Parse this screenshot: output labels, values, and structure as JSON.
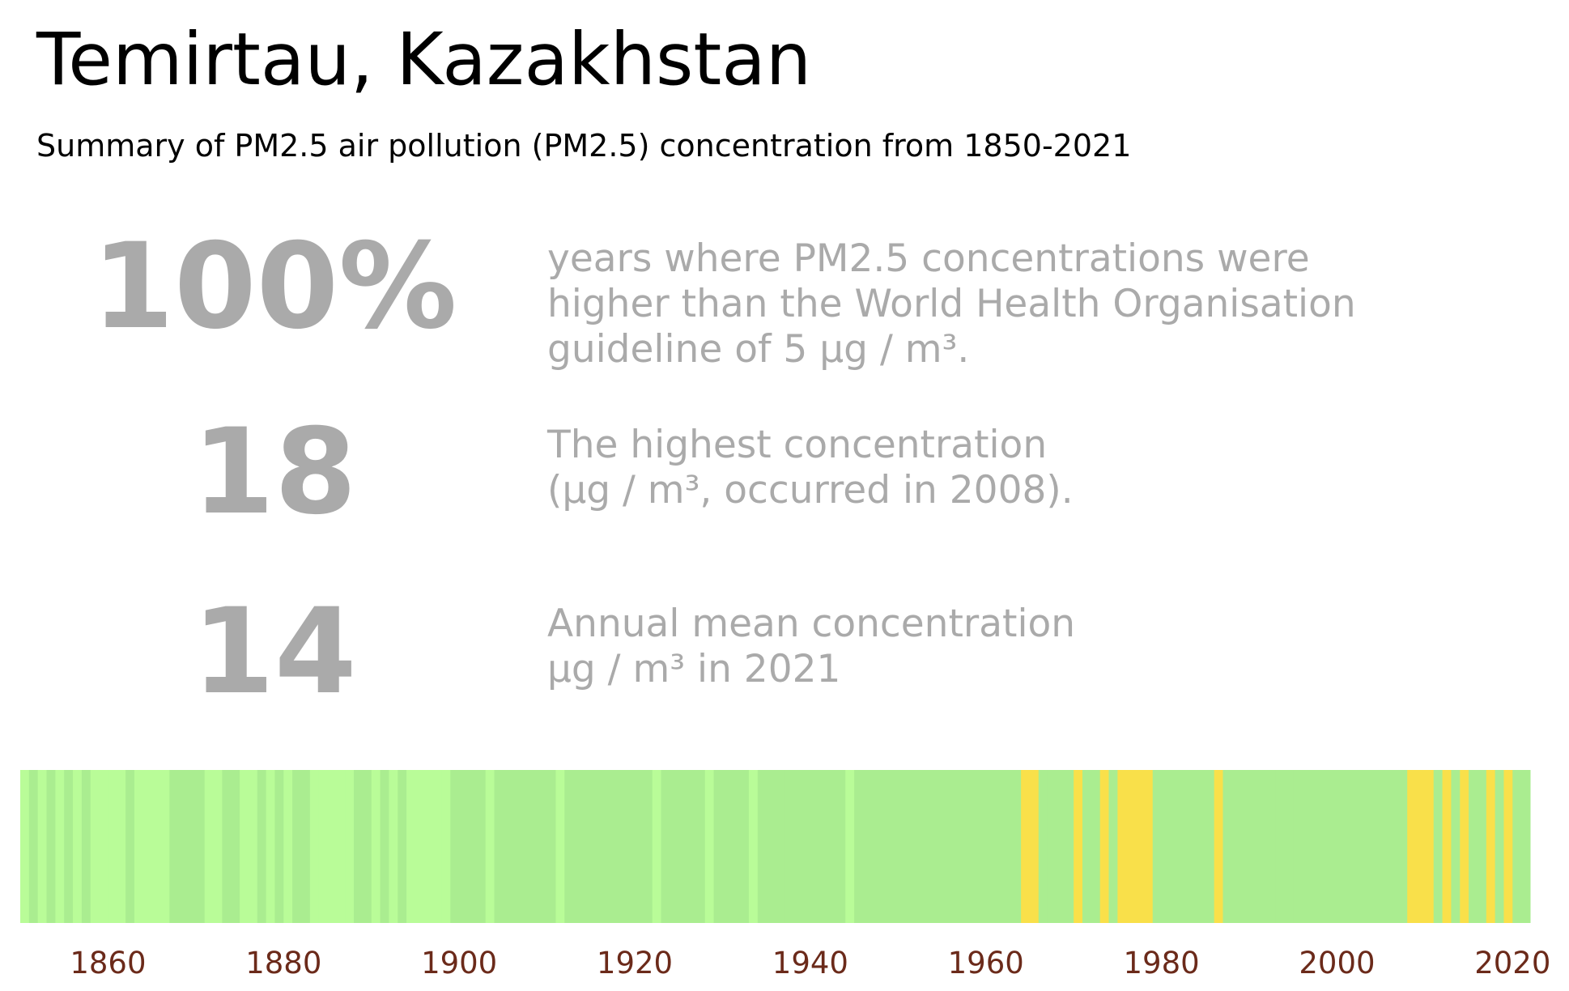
{
  "chart_data": {
    "type": "stripes",
    "title": "Temirtau, Kazakhstan",
    "subtitle": "Summary of PM2.5 air pollution (PM2.5) concentration from 1850-2021",
    "stats": [
      {
        "value": "100%",
        "lines": [
          "years where PM2.5 concentrations were",
          "higher than the World Health Organisation",
          "guideline of 5 µg / m³."
        ]
      },
      {
        "value": "18",
        "lines": [
          "The highest concentration",
          "(µg / m³, occurred in 2008)."
        ]
      },
      {
        "value": "14",
        "lines": [
          "Annual mean concentration",
          "µg / m³ in 2021"
        ]
      }
    ],
    "x": [
      1850,
      1851,
      1852,
      1853,
      1854,
      1855,
      1856,
      1857,
      1858,
      1859,
      1860,
      1861,
      1862,
      1863,
      1864,
      1865,
      1866,
      1867,
      1868,
      1869,
      1870,
      1871,
      1872,
      1873,
      1874,
      1875,
      1876,
      1877,
      1878,
      1879,
      1880,
      1881,
      1882,
      1883,
      1884,
      1885,
      1886,
      1887,
      1888,
      1889,
      1890,
      1891,
      1892,
      1893,
      1894,
      1895,
      1896,
      1897,
      1898,
      1899,
      1900,
      1901,
      1902,
      1903,
      1904,
      1905,
      1906,
      1907,
      1908,
      1909,
      1910,
      1911,
      1912,
      1913,
      1914,
      1915,
      1916,
      1917,
      1918,
      1919,
      1920,
      1921,
      1922,
      1923,
      1924,
      1925,
      1926,
      1927,
      1928,
      1929,
      1930,
      1931,
      1932,
      1933,
      1934,
      1935,
      1936,
      1937,
      1938,
      1939,
      1940,
      1941,
      1942,
      1943,
      1944,
      1945,
      1946,
      1947,
      1948,
      1949,
      1950,
      1951,
      1952,
      1953,
      1954,
      1955,
      1956,
      1957,
      1958,
      1959,
      1960,
      1961,
      1962,
      1963,
      1964,
      1965,
      1966,
      1967,
      1968,
      1969,
      1970,
      1971,
      1972,
      1973,
      1974,
      1975,
      1976,
      1977,
      1978,
      1979,
      1980,
      1981,
      1982,
      1983,
      1984,
      1985,
      1986,
      1987,
      1988,
      1989,
      1990,
      1991,
      1992,
      1993,
      1994,
      1995,
      1996,
      1997,
      1998,
      1999,
      2000,
      2001,
      2002,
      2003,
      2004,
      2005,
      2006,
      2007,
      2008,
      2009,
      2010,
      2011,
      2012,
      2013,
      2014,
      2015,
      2016,
      2017,
      2018,
      2019,
      2020,
      2021
    ],
    "values": [
      8,
      12,
      8,
      12,
      8,
      12,
      8,
      12,
      8,
      8,
      8,
      8,
      12,
      8,
      8,
      8,
      8,
      12,
      12,
      12,
      12,
      8,
      8,
      12,
      12,
      8,
      8,
      12,
      8,
      12,
      8,
      12,
      12,
      8,
      8,
      8,
      8,
      8,
      12,
      12,
      8,
      12,
      8,
      12,
      8,
      8,
      8,
      8,
      8,
      12,
      12,
      12,
      12,
      8,
      12,
      12,
      12,
      12,
      12,
      12,
      12,
      8,
      12,
      12,
      12,
      12,
      12,
      12,
      12,
      12,
      12,
      12,
      8,
      12,
      12,
      12,
      12,
      12,
      8,
      12,
      12,
      12,
      12,
      8,
      12,
      12,
      12,
      12,
      12,
      12,
      12,
      12,
      12,
      12,
      8,
      12,
      12,
      12,
      12,
      12,
      12,
      12,
      12,
      12,
      12,
      12,
      12,
      12,
      12,
      12,
      12,
      12,
      12,
      12,
      16,
      16,
      12,
      12,
      12,
      12,
      16,
      12,
      12,
      16,
      12,
      16,
      16,
      16,
      16,
      12,
      12,
      12,
      12,
      12,
      12,
      12,
      16,
      12,
      12,
      12,
      12,
      12,
      12,
      12,
      12,
      12,
      12,
      12,
      12,
      12,
      12,
      12,
      12,
      12,
      12,
      12,
      12,
      12,
      18,
      16,
      16,
      12,
      16,
      12,
      16,
      12,
      12,
      16,
      12,
      16,
      12,
      14
    ],
    "color_thresholds": [
      10,
      15
    ],
    "colors": [
      "#b9fc98",
      "#aaed90",
      "#f9e04a"
    ],
    "xlim": [
      1850,
      2022
    ],
    "xticks": [
      1860,
      1880,
      1900,
      1920,
      1940,
      1960,
      1980,
      2000,
      2020
    ]
  }
}
